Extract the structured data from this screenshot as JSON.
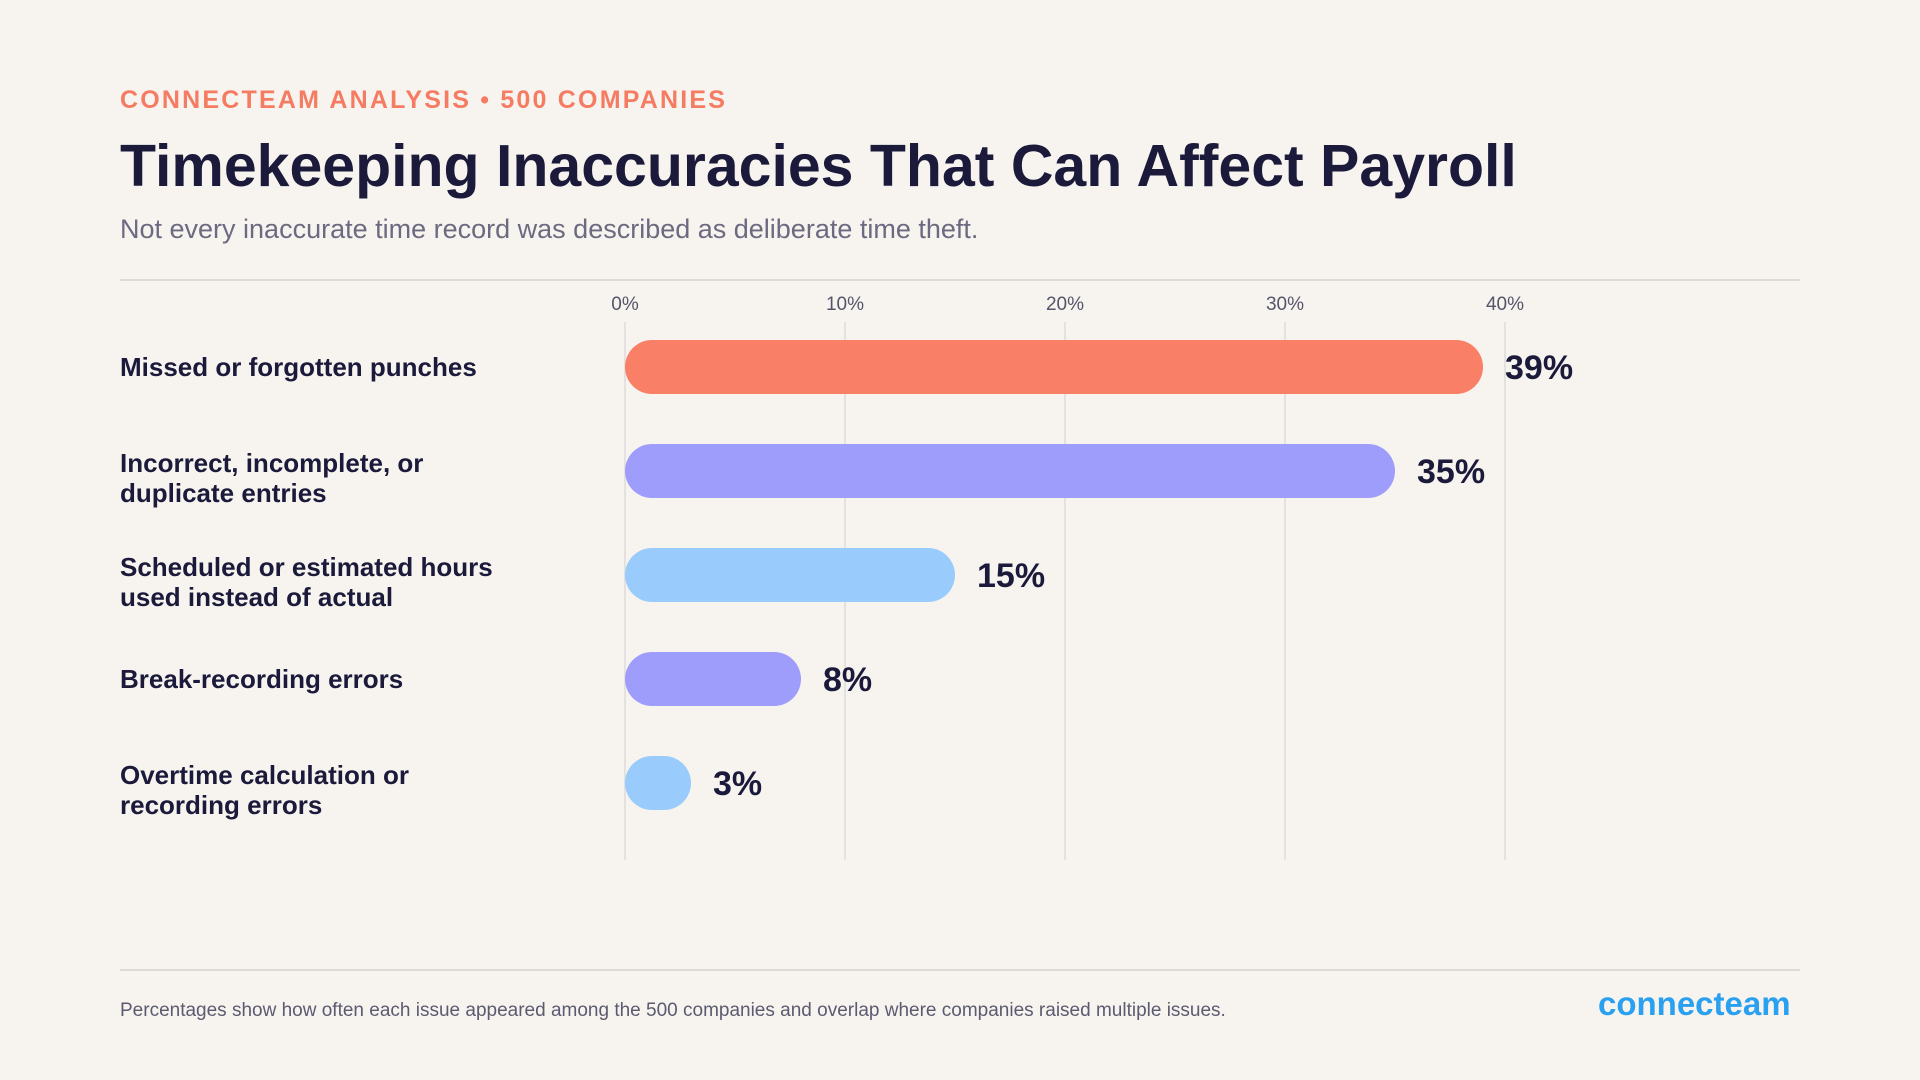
{
  "header": {
    "eyebrow": "CONNECTEAM ANALYSIS • 500 COMPANIES",
    "title": "Timekeeping Inaccuracies That Can Affect Payroll",
    "subtitle": "Not every inaccurate time record was described as deliberate time theft."
  },
  "footer": {
    "note": "Percentages show how often each issue appeared among the 500 companies and overlap where companies raised multiple issues.",
    "logo_text": "connecteam"
  },
  "colors": {
    "accent": "#f57c63",
    "title": "#1b1a3b",
    "logo": "#2aa0f0"
  },
  "chart_data": {
    "type": "bar",
    "orientation": "horizontal",
    "title": "Timekeeping Inaccuracies That Can Affect Payroll",
    "subtitle": "Not every inaccurate time record was described as deliberate time theft.",
    "categories": [
      [
        "Missed or forgotten punches"
      ],
      [
        "Incorrect, incomplete, or",
        "duplicate entries"
      ],
      [
        "Scheduled or estimated hours",
        "used instead of actual"
      ],
      [
        "Break-recording errors"
      ],
      [
        "Overtime calculation or",
        "recording errors"
      ]
    ],
    "values": [
      39,
      35,
      15,
      8,
      3
    ],
    "value_labels": [
      "39%",
      "35%",
      "15%",
      "8%",
      "3%"
    ],
    "bar_colors": [
      "#f97f66",
      "#9f9dfc",
      "#99cbfc",
      "#9f9dfc",
      "#99cbfc"
    ],
    "xlim": [
      0,
      40
    ],
    "xticks": [
      0,
      10,
      20,
      30,
      40
    ],
    "xtick_labels": [
      "0%",
      "10%",
      "20%",
      "30%",
      "40%"
    ],
    "xaxis_position": "top",
    "grid": true,
    "legend": "none"
  }
}
